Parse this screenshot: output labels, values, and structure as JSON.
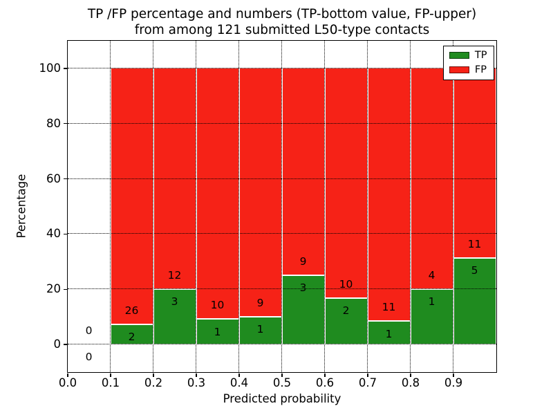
{
  "chart_data": {
    "type": "bar",
    "stacked": true,
    "title_line1": "TP /FP percentage and numbers (TP-bottom value, FP-upper)",
    "title_line2": "from among 121 submitted L50-type contacts",
    "xlabel": "Predicted probability",
    "ylabel": "Percentage",
    "xlim": [
      0,
      1
    ],
    "ylim": [
      -10,
      110
    ],
    "grid": "dotted",
    "grid_above_bars": true,
    "total_contacts": 121,
    "colors": {
      "tp": "#1f8b1f",
      "fp": "#f62217",
      "bar_edge": "#ffffff",
      "text": "#000000"
    },
    "x_ticks": [
      {
        "v": 0.0,
        "label": "0.0"
      },
      {
        "v": 0.1,
        "label": "0.1"
      },
      {
        "v": 0.2,
        "label": "0.2"
      },
      {
        "v": 0.3,
        "label": "0.3"
      },
      {
        "v": 0.4,
        "label": "0.4"
      },
      {
        "v": 0.5,
        "label": "0.5"
      },
      {
        "v": 0.6,
        "label": "0.6"
      },
      {
        "v": 0.7,
        "label": "0.7"
      },
      {
        "v": 0.8,
        "label": "0.8"
      },
      {
        "v": 0.9,
        "label": "0.9"
      }
    ],
    "y_ticks": [
      {
        "v": 0,
        "label": "0"
      },
      {
        "v": 20,
        "label": "20"
      },
      {
        "v": 40,
        "label": "40"
      },
      {
        "v": 60,
        "label": "60"
      },
      {
        "v": 80,
        "label": "80"
      },
      {
        "v": 100,
        "label": "100"
      }
    ],
    "legend": {
      "position": "upper right",
      "items": [
        {
          "key": "tp",
          "label": "TP"
        },
        {
          "key": "fp",
          "label": "FP"
        }
      ]
    },
    "bins": [
      {
        "x0": 0.0,
        "x1": 0.1,
        "tp": 0,
        "fp": 0,
        "tp_pct": 0,
        "total_pct": 0
      },
      {
        "x0": 0.1,
        "x1": 0.2,
        "tp": 2,
        "fp": 26,
        "tp_pct": 7.14,
        "total_pct": 100
      },
      {
        "x0": 0.2,
        "x1": 0.3,
        "tp": 3,
        "fp": 12,
        "tp_pct": 20,
        "total_pct": 100
      },
      {
        "x0": 0.3,
        "x1": 0.4,
        "tp": 1,
        "fp": 10,
        "tp_pct": 9.09,
        "total_pct": 100
      },
      {
        "x0": 0.4,
        "x1": 0.5,
        "tp": 1,
        "fp": 9,
        "tp_pct": 10,
        "total_pct": 100
      },
      {
        "x0": 0.5,
        "x1": 0.6,
        "tp": 3,
        "fp": 9,
        "tp_pct": 25,
        "total_pct": 100
      },
      {
        "x0": 0.6,
        "x1": 0.7,
        "tp": 2,
        "fp": 10,
        "tp_pct": 16.67,
        "total_pct": 100
      },
      {
        "x0": 0.7,
        "x1": 0.8,
        "tp": 1,
        "fp": 11,
        "tp_pct": 8.33,
        "total_pct": 100
      },
      {
        "x0": 0.8,
        "x1": 0.9,
        "tp": 1,
        "fp": 4,
        "tp_pct": 20,
        "total_pct": 100
      },
      {
        "x0": 0.9,
        "x1": 1.0,
        "tp": 5,
        "fp": 11,
        "tp_pct": 31.25,
        "total_pct": 100
      }
    ]
  }
}
